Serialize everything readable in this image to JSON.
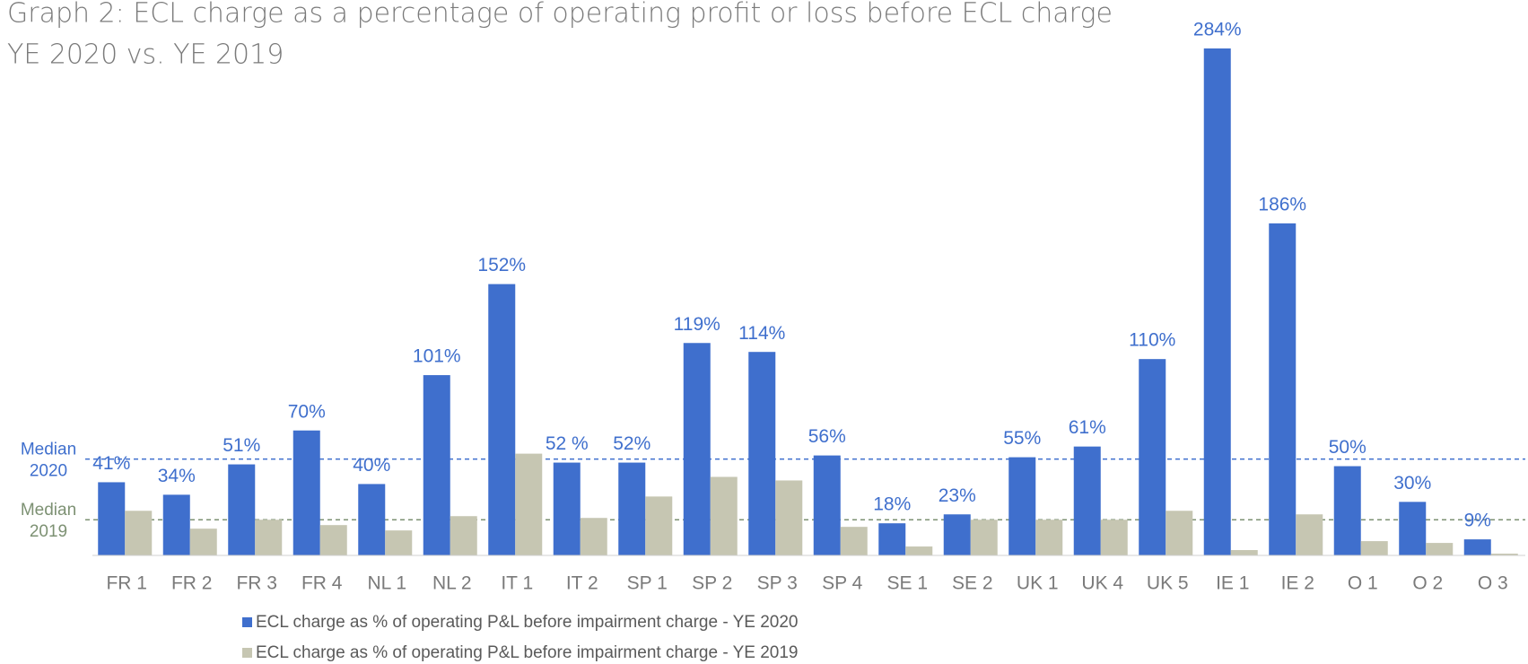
{
  "chart_data": {
    "type": "bar",
    "title": "Graph 2: ECL charge as a percentage of operating profit or loss before ECL charge",
    "subtitle": "YE 2020 vs. YE 2019",
    "categories": [
      "FR 1",
      "FR 2",
      "FR 3",
      "FR 4",
      "NL 1",
      "NL 2",
      "IT 1",
      "IT 2",
      "SP 1",
      "SP 2",
      "SP 3",
      "SP 4",
      "SE 1",
      "SE 2",
      "UK 1",
      "UK 4",
      "UK 5",
      "IE 1",
      "IE 2",
      "O 1",
      "O 2",
      "O 3"
    ],
    "series": [
      {
        "name": "ECL charge as % of operating P&L before impairment charge - YE 2020",
        "color": "#3f6fcd",
        "values": [
          41,
          34,
          51,
          70,
          40,
          101,
          152,
          52,
          52,
          119,
          114,
          56,
          18,
          23,
          55,
          61,
          110,
          284,
          186,
          50,
          30,
          9
        ],
        "value_labels": [
          "41%",
          "34%",
          "51%",
          "70%",
          "40%",
          "101%",
          "152%",
          "52 %",
          "52%",
          "119%",
          "114%",
          "56%",
          "18%",
          "23%",
          "55%",
          "61%",
          "110%",
          "284%",
          "186%",
          "50%",
          "30%",
          "9%"
        ]
      },
      {
        "name": "ECL charge as % of operating P&L before impairment charge - YE 2019",
        "color": "#c6c6b2",
        "values": [
          25,
          15,
          20,
          17,
          14,
          22,
          57,
          21,
          33,
          44,
          42,
          16,
          5,
          20,
          20,
          20,
          25,
          3,
          23,
          8,
          7,
          1
        ]
      }
    ],
    "medians": [
      {
        "label": [
          "Median",
          "2020"
        ],
        "value": 54,
        "color": "#3f6fcd"
      },
      {
        "label": [
          "Median",
          "2019"
        ],
        "value": 20,
        "color": "#7d9173"
      }
    ],
    "ylim": [
      0,
      284
    ]
  }
}
